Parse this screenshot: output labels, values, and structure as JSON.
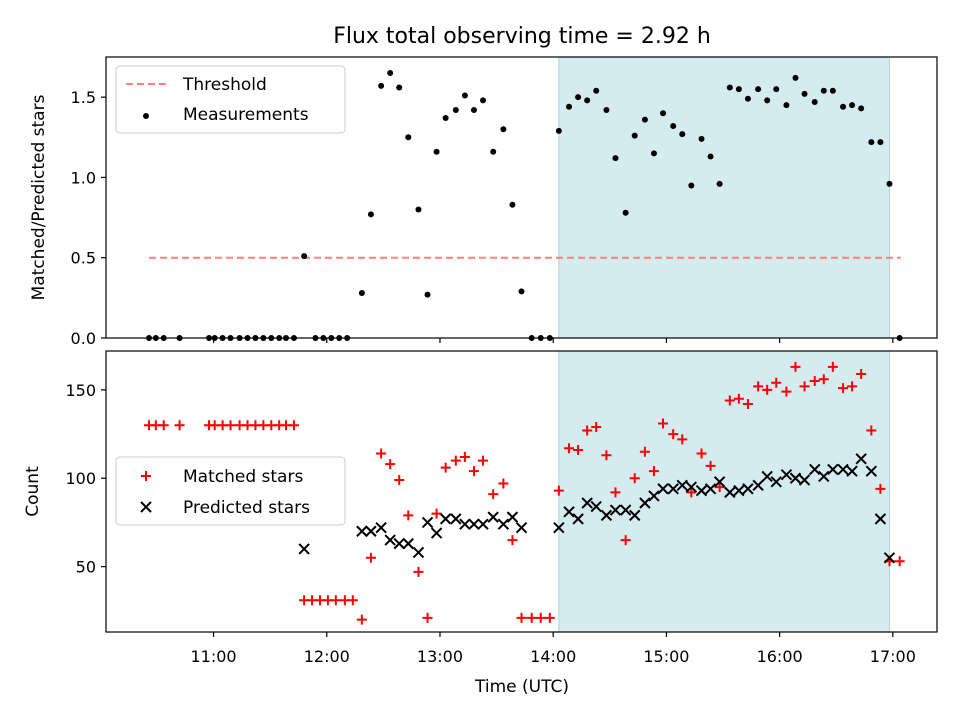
{
  "title": "Flux total observing time = 2.92 h",
  "colors": {
    "threshold": "#ff7f7f",
    "measurement": "#000000",
    "matched": "#ff0000",
    "predicted": "#000000",
    "shade": "#d4ebf0"
  },
  "chart_data": [
    {
      "type": "scatter",
      "panel": "top",
      "ylabel": "Matched/Predicted stars",
      "ylim": [
        0,
        1.75
      ],
      "yticks": [
        0.0,
        0.5,
        1.0,
        1.5
      ],
      "ytick_labels": [
        "0.0",
        "0.5",
        "1.0",
        "1.5"
      ],
      "xlim": [
        10.05,
        17.39
      ],
      "shaded_interval": [
        14.05,
        16.97
      ],
      "grid": false,
      "legend": {
        "position": "upper left",
        "entries": [
          "Threshold",
          "Measurements"
        ]
      },
      "threshold": {
        "name": "Threshold",
        "y": 0.5,
        "x_range": [
          10.43,
          17.07
        ],
        "style": "dashed"
      },
      "series": [
        {
          "name": "Measurements",
          "marker": "dot",
          "x": [
            10.43,
            10.49,
            10.56,
            10.7,
            10.96,
            11.01,
            11.08,
            11.15,
            11.23,
            11.3,
            11.37,
            11.44,
            11.51,
            11.58,
            11.64,
            11.71,
            11.8,
            11.9,
            11.97,
            12.04,
            12.11,
            12.18,
            12.31,
            12.39,
            12.48,
            12.56,
            12.64,
            12.72,
            12.81,
            12.89,
            12.97,
            13.05,
            13.14,
            13.22,
            13.3,
            13.38,
            13.47,
            13.56,
            13.64,
            13.72,
            13.81,
            13.89,
            13.97,
            14.05,
            14.14,
            14.22,
            14.3,
            14.38,
            14.47,
            14.55,
            14.64,
            14.72,
            14.81,
            14.89,
            14.97,
            15.06,
            15.14,
            15.22,
            15.31,
            15.39,
            15.47,
            15.56,
            15.64,
            15.72,
            15.81,
            15.89,
            15.97,
            16.06,
            16.14,
            16.22,
            16.31,
            16.39,
            16.47,
            16.56,
            16.64,
            16.72,
            16.81,
            16.89,
            16.97,
            17.06
          ],
          "y": [
            0,
            0,
            0,
            0,
            0,
            0,
            0,
            0,
            0,
            0,
            0,
            0,
            0,
            0,
            0,
            0,
            0.51,
            0,
            0,
            0,
            0,
            0,
            0.28,
            0.77,
            1.57,
            1.65,
            1.56,
            1.25,
            0.8,
            0.27,
            1.16,
            1.37,
            1.42,
            1.51,
            1.42,
            1.48,
            1.16,
            1.3,
            0.83,
            0.29,
            0,
            0,
            0,
            1.29,
            1.44,
            1.5,
            1.48,
            1.54,
            1.42,
            1.12,
            0.78,
            1.26,
            1.36,
            1.15,
            1.4,
            1.32,
            1.27,
            0.95,
            1.24,
            1.13,
            0.96,
            1.56,
            1.55,
            1.49,
            1.55,
            1.48,
            1.55,
            1.45,
            1.62,
            1.52,
            1.47,
            1.54,
            1.54,
            1.44,
            1.45,
            1.43,
            1.22,
            1.22,
            0.96,
            0
          ]
        }
      ]
    },
    {
      "type": "scatter",
      "panel": "bottom",
      "xlabel": "Time (UTC)",
      "ylabel": "Count",
      "ylim": [
        13,
        172
      ],
      "yticks": [
        50,
        100,
        150
      ],
      "ytick_labels": [
        "50",
        "100",
        "150"
      ],
      "xlim": [
        10.05,
        17.39
      ],
      "xticks": [
        11,
        12,
        13,
        14,
        15,
        16,
        17
      ],
      "xtick_labels": [
        "11:00",
        "12:00",
        "13:00",
        "14:00",
        "15:00",
        "16:00",
        "17:00"
      ],
      "shaded_interval": [
        14.05,
        16.97
      ],
      "grid": false,
      "legend": {
        "position": "center left",
        "entries": [
          "Matched stars",
          "Predicted stars"
        ]
      },
      "series": [
        {
          "name": "Matched stars",
          "marker": "plus",
          "x": [
            10.43,
            10.49,
            10.56,
            10.7,
            10.96,
            11.01,
            11.08,
            11.15,
            11.23,
            11.3,
            11.37,
            11.44,
            11.51,
            11.58,
            11.64,
            11.71,
            11.8,
            11.87,
            11.94,
            12.01,
            12.08,
            12.16,
            12.23,
            12.31,
            12.39,
            12.48,
            12.56,
            12.64,
            12.72,
            12.81,
            12.89,
            12.97,
            13.05,
            13.14,
            13.22,
            13.3,
            13.38,
            13.47,
            13.56,
            13.64,
            13.72,
            13.81,
            13.89,
            13.97,
            14.05,
            14.14,
            14.22,
            14.3,
            14.38,
            14.47,
            14.55,
            14.64,
            14.72,
            14.81,
            14.89,
            14.97,
            15.06,
            15.14,
            15.22,
            15.31,
            15.39,
            15.47,
            15.56,
            15.64,
            15.72,
            15.81,
            15.89,
            15.97,
            16.06,
            16.14,
            16.22,
            16.31,
            16.39,
            16.47,
            16.56,
            16.64,
            16.72,
            16.81,
            16.89,
            16.97,
            17.06
          ],
          "y": [
            130,
            130,
            130,
            130,
            130,
            130,
            130,
            130,
            130,
            130,
            130,
            130,
            130,
            130,
            130,
            130,
            31,
            31,
            31,
            31,
            31,
            31,
            31,
            20,
            55,
            114,
            108,
            99,
            79,
            47,
            21,
            80,
            106,
            110,
            112,
            104,
            110,
            91,
            97,
            65,
            21,
            21,
            21,
            21,
            93,
            117,
            116,
            127,
            129,
            113,
            92,
            65,
            100,
            115,
            104,
            131,
            125,
            122,
            92,
            114,
            107,
            95,
            144,
            145,
            142,
            152,
            150,
            154,
            149,
            163,
            152,
            155,
            156,
            163,
            151,
            152,
            159,
            127,
            94,
            53,
            53
          ]
        },
        {
          "name": "Predicted stars",
          "marker": "x",
          "x": [
            11.8,
            12.31,
            12.39,
            12.48,
            12.56,
            12.64,
            12.72,
            12.81,
            12.89,
            12.97,
            13.05,
            13.14,
            13.22,
            13.3,
            13.38,
            13.47,
            13.56,
            13.64,
            13.72,
            14.05,
            14.14,
            14.22,
            14.3,
            14.38,
            14.47,
            14.55,
            14.64,
            14.72,
            14.81,
            14.89,
            14.97,
            15.06,
            15.14,
            15.22,
            15.31,
            15.39,
            15.47,
            15.56,
            15.64,
            15.72,
            15.81,
            15.89,
            15.97,
            16.06,
            16.14,
            16.22,
            16.31,
            16.39,
            16.47,
            16.56,
            16.64,
            16.72,
            16.81,
            16.89,
            16.97
          ],
          "y": [
            60,
            70,
            70,
            72,
            65,
            63,
            63,
            58,
            75,
            69,
            77,
            77,
            74,
            74,
            74,
            78,
            74,
            78,
            72,
            72,
            81,
            77,
            86,
            84,
            79,
            82,
            82,
            79,
            86,
            90,
            94,
            94,
            96,
            95,
            93,
            94,
            98,
            92,
            93,
            94,
            96,
            101,
            98,
            102,
            100,
            99,
            105,
            101,
            105,
            105,
            104,
            111,
            104,
            77,
            55
          ]
        }
      ]
    }
  ]
}
